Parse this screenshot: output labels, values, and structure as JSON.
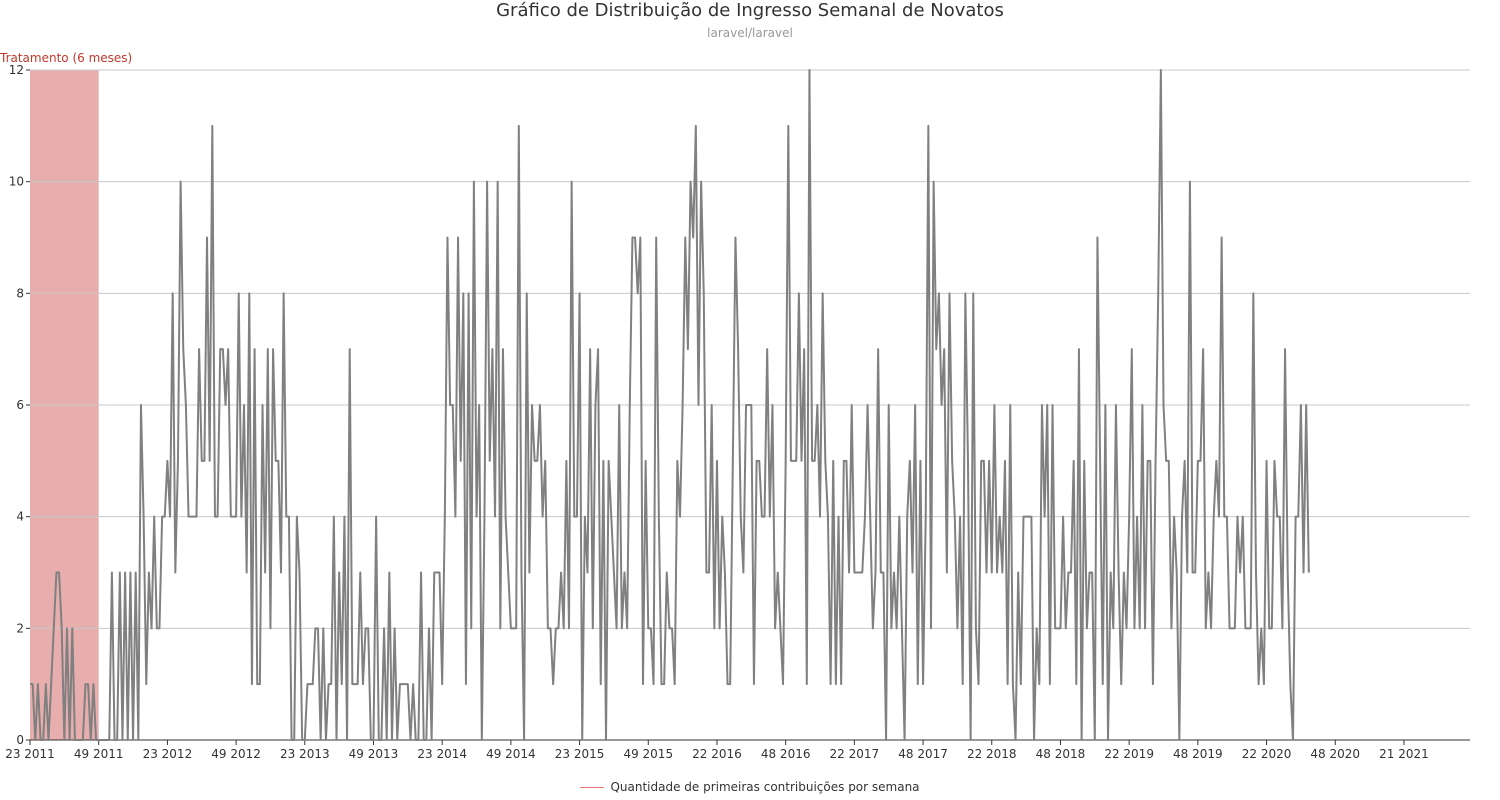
{
  "colors": {
    "series_line": "#808080",
    "treatment_band": "#e8aeae",
    "treatment_label": "#c0392b",
    "legend_swatch": "#e57373",
    "grid": "#c8c8c8",
    "text": "#333333",
    "subtitle": "#999999"
  },
  "chart_data": {
    "type": "line",
    "title": "Gráfico de Distribuição de Ingresso Semanal de Novatos",
    "subtitle": "laravel/laravel",
    "xlabel": "",
    "ylabel": "",
    "ylim": [
      0,
      12
    ],
    "y_ticks": [
      0,
      2,
      4,
      6,
      8,
      10,
      12
    ],
    "grid": true,
    "legend_position": "bottom-center",
    "x_tick_labels": [
      "23 2011",
      "49 2011",
      "23 2012",
      "49 2012",
      "23 2013",
      "49 2013",
      "23 2014",
      "49 2014",
      "23 2015",
      "49 2015",
      "22 2016",
      "48 2016",
      "22 2017",
      "48 2017",
      "22 2018",
      "48 2018",
      "22 2019",
      "48 2019",
      "22 2020",
      "48 2020",
      "21 2021"
    ],
    "x_tick_weeks": [
      0,
      26,
      52,
      78,
      104,
      130,
      156,
      182,
      208,
      234,
      260,
      286,
      312,
      338,
      364,
      390,
      416,
      442,
      468,
      494,
      520
    ],
    "x_range_weeks": [
      0,
      545
    ],
    "treatment": {
      "label": "Tratamento (6 meses)",
      "start_week": 0,
      "end_week": 26
    },
    "series": [
      {
        "name": "Quantidade de primeiras contribuições por semana",
        "values": [
          1,
          1,
          0,
          1,
          0,
          0,
          1,
          0,
          1,
          2,
          3,
          3,
          2,
          0,
          2,
          0,
          2,
          0,
          0,
          0,
          0,
          1,
          1,
          0,
          1,
          0,
          0,
          0,
          0,
          0,
          0,
          3,
          0,
          0,
          3,
          0,
          3,
          0,
          3,
          0,
          3,
          0,
          6,
          4,
          1,
          3,
          2,
          4,
          2,
          2,
          4,
          4,
          5,
          4,
          8,
          3,
          5,
          10,
          7,
          6,
          4,
          4,
          4,
          4,
          7,
          5,
          5,
          9,
          5,
          11,
          4,
          4,
          7,
          7,
          6,
          7,
          4,
          4,
          4,
          8,
          4,
          6,
          3,
          8,
          1,
          7,
          1,
          1,
          6,
          3,
          7,
          2,
          7,
          5,
          5,
          3,
          8,
          4,
          4,
          0,
          0,
          4,
          3,
          0,
          0,
          1,
          1,
          1,
          2,
          2,
          0,
          2,
          0,
          1,
          1,
          4,
          0,
          3,
          1,
          4,
          0,
          7,
          1,
          1,
          1,
          3,
          1,
          2,
          2,
          0,
          0,
          4,
          0,
          0,
          2,
          0,
          3,
          0,
          2,
          0,
          1,
          1,
          1,
          1,
          0,
          1,
          0,
          0,
          3,
          0,
          0,
          2,
          0,
          3,
          3,
          3,
          1,
          4,
          9,
          6,
          6,
          4,
          9,
          5,
          8,
          1,
          8,
          2,
          10,
          4,
          6,
          0,
          4,
          10,
          5,
          7,
          4,
          10,
          2,
          7,
          4,
          3,
          2,
          2,
          2,
          11,
          3,
          0,
          8,
          3,
          6,
          5,
          5,
          6,
          4,
          5,
          2,
          2,
          1,
          2,
          2,
          3,
          2,
          5,
          2,
          10,
          4,
          4,
          8,
          0,
          4,
          3,
          7,
          2,
          6,
          7,
          1,
          5,
          0,
          5,
          4,
          3,
          2,
          6,
          2,
          3,
          2,
          6,
          9,
          9,
          8,
          9,
          1,
          5,
          2,
          2,
          1,
          9,
          4,
          1,
          1,
          3,
          2,
          2,
          1,
          5,
          4,
          6,
          9,
          7,
          10,
          9,
          11,
          6,
          10,
          8,
          3,
          3,
          6,
          2,
          5,
          2,
          4,
          3,
          1,
          1,
          5,
          9,
          7,
          4,
          3,
          6,
          6,
          6,
          1,
          5,
          5,
          4,
          4,
          7,
          4,
          6,
          2,
          3,
          2,
          1,
          5,
          11,
          5,
          5,
          5,
          8,
          5,
          7,
          1,
          12,
          5,
          5,
          6,
          4,
          8,
          5,
          4,
          1,
          5,
          1,
          4,
          1,
          5,
          5,
          3,
          6,
          3,
          3,
          3,
          3,
          4,
          6,
          4,
          2,
          3,
          7,
          3,
          3,
          0,
          6,
          2,
          3,
          2,
          4,
          2,
          0,
          4,
          5,
          3,
          6,
          1,
          5,
          1,
          4,
          11,
          2,
          10,
          7,
          8,
          6,
          7,
          3,
          8,
          5,
          4,
          2,
          4,
          1,
          8,
          5,
          0,
          8,
          2,
          1,
          5,
          5,
          3,
          5,
          3,
          6,
          3,
          4,
          3,
          5,
          1,
          6,
          1,
          0,
          3,
          1,
          4,
          4,
          4,
          4,
          0,
          2,
          1,
          6,
          4,
          6,
          1,
          6,
          2,
          2,
          2,
          4,
          2,
          3,
          3,
          5,
          1,
          7,
          0,
          5,
          2,
          3,
          3,
          0,
          9,
          5,
          1,
          6,
          0,
          3,
          2,
          6,
          3,
          1,
          3,
          2,
          4,
          7,
          2,
          4,
          2,
          6,
          2,
          5,
          5,
          1,
          5,
          8,
          12,
          6,
          5,
          5,
          2,
          4,
          3,
          0,
          4,
          5,
          3,
          10,
          3,
          3,
          5,
          5,
          7,
          2,
          3,
          2,
          4,
          5,
          4,
          9,
          4,
          4,
          2,
          2,
          2,
          4,
          3,
          4,
          2,
          2,
          2,
          8,
          3,
          1,
          2,
          1,
          5,
          2,
          2,
          5,
          4,
          4,
          2,
          7,
          3,
          1,
          0,
          4,
          4,
          6,
          3,
          6,
          3
        ]
      }
    ]
  }
}
